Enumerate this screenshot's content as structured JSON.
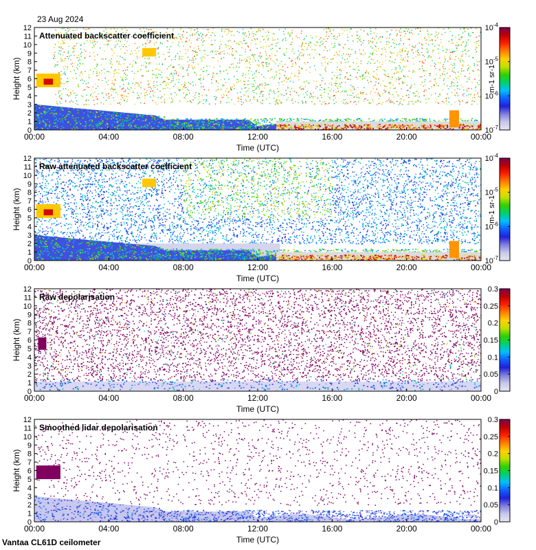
{
  "date_label": "23 Aug 2024",
  "footer": "Vantaa CL61D ceilometer",
  "colors": {
    "rainbow": [
      "#e6e6f2",
      "#c8c8ea",
      "#8080e0",
      "#2020d8",
      "#1060ff",
      "#00c0ff",
      "#00d070",
      "#30d000",
      "#c0e000",
      "#ffd000",
      "#ff8000",
      "#ff2000",
      "#c00000",
      "#7a0050"
    ],
    "clear_sky": "#dcdcdc",
    "speckle": "#800060"
  },
  "chart_data": [
    {
      "type": "heatmap",
      "id": "att",
      "title": "Attenuated backscatter coefficient",
      "xlabel": "Time (UTC)",
      "ylabel": "Height (km)",
      "xticks": [
        "00:00",
        "04:00",
        "08:00",
        "12:00",
        "16:00",
        "20:00",
        "00:00"
      ],
      "xlim_hours": [
        0,
        24
      ],
      "ylim_km": [
        0,
        12
      ],
      "yticks": [
        0,
        1,
        2,
        3,
        4,
        5,
        6,
        7,
        8,
        9,
        10,
        11,
        12
      ],
      "colorbar": {
        "scale": "log",
        "range": [
          1e-07,
          0.0001
        ],
        "unit": "m-1 sr-1",
        "ticks": [
          {
            "base": "10",
            "exp": "-4",
            "v": 0.0001
          },
          {
            "base": "10",
            "exp": "-5",
            "v": 1e-05
          },
          {
            "base": "10",
            "exp": "-6",
            "v": 1e-06
          },
          {
            "base": "10",
            "exp": "-7",
            "v": 1e-07
          }
        ]
      }
    },
    {
      "type": "heatmap",
      "id": "raw",
      "title": "Raw attenuated backscatter coefficient",
      "xlabel": "Time (UTC)",
      "ylabel": "Height (km)",
      "xticks": [
        "00:00",
        "04:00",
        "08:00",
        "12:00",
        "16:00",
        "20:00",
        "00:00"
      ],
      "xlim_hours": [
        0,
        24
      ],
      "ylim_km": [
        0,
        12
      ],
      "yticks": [
        0,
        1,
        2,
        3,
        4,
        5,
        6,
        7,
        8,
        9,
        10,
        11,
        12
      ],
      "colorbar": {
        "scale": "log",
        "range": [
          1e-07,
          0.0001
        ],
        "unit": "m-1 sr-1",
        "ticks": [
          {
            "base": "10",
            "exp": "-4",
            "v": 0.0001
          },
          {
            "base": "10",
            "exp": "-5",
            "v": 1e-05
          },
          {
            "base": "10",
            "exp": "-6",
            "v": 1e-06
          },
          {
            "base": "10",
            "exp": "-7",
            "v": 1e-07
          }
        ]
      }
    },
    {
      "type": "heatmap",
      "id": "rawdep",
      "title": "Raw depolarisation",
      "xlabel": "Time (UTC)",
      "ylabel": "Height (km)",
      "xticks": [
        "00:00",
        "04:00",
        "08:00",
        "12:00",
        "16:00",
        "20:00",
        "00:00"
      ],
      "xlim_hours": [
        0,
        24
      ],
      "ylim_km": [
        0,
        12
      ],
      "yticks": [
        0,
        1,
        2,
        3,
        4,
        5,
        6,
        7,
        8,
        9,
        10,
        11,
        12
      ],
      "colorbar": {
        "scale": "linear",
        "range": [
          0,
          0.3
        ],
        "unit": "",
        "ticks": [
          {
            "t": "0.3",
            "v": 0.3
          },
          {
            "t": "0.25",
            "v": 0.25
          },
          {
            "t": "0.2",
            "v": 0.2
          },
          {
            "t": "0.15",
            "v": 0.15
          },
          {
            "t": "0.1",
            "v": 0.1
          },
          {
            "t": "0.05",
            "v": 0.05
          },
          {
            "t": "0",
            "v": 0
          }
        ]
      }
    },
    {
      "type": "heatmap",
      "id": "smdep",
      "title": "Smoothed lidar depolarisation",
      "xlabel": "Time (UTC)",
      "ylabel": "Height (km)",
      "xticks": [
        "00:00",
        "04:00",
        "08:00",
        "12:00",
        "16:00",
        "20:00",
        "00:00"
      ],
      "xlim_hours": [
        0,
        24
      ],
      "ylim_km": [
        0,
        12
      ],
      "yticks": [
        0,
        1,
        2,
        3,
        4,
        5,
        6,
        7,
        8,
        9,
        10,
        11,
        12
      ],
      "colorbar": {
        "scale": "linear",
        "range": [
          0,
          0.3
        ],
        "unit": "",
        "ticks": [
          {
            "t": "0.3",
            "v": 0.3
          },
          {
            "t": "0.25",
            "v": 0.25
          },
          {
            "t": "0.2",
            "v": 0.2
          },
          {
            "t": "0.15",
            "v": 0.15
          },
          {
            "t": "0.1",
            "v": 0.1
          },
          {
            "t": "0.05",
            "v": 0.05
          },
          {
            "t": "0",
            "v": 0
          }
        ]
      }
    }
  ]
}
